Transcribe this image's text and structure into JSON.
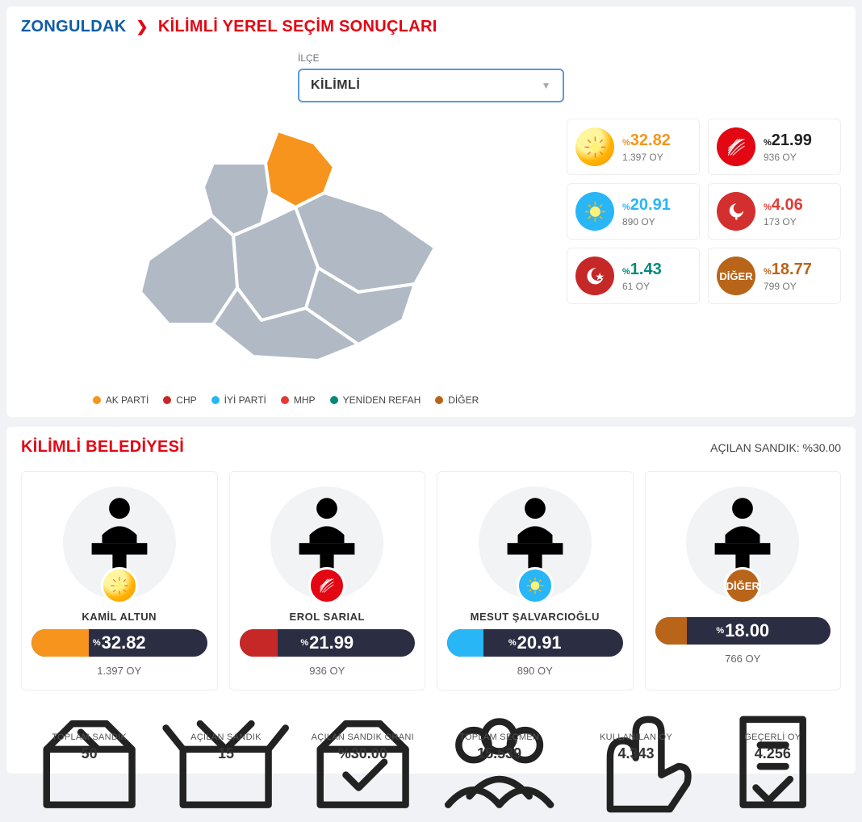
{
  "breadcrumb": {
    "province": "ZONGULDAK",
    "title": "KİLİMLİ YEREL SEÇİM SONUÇLARI"
  },
  "select": {
    "label": "İLÇE",
    "value": "KİLİMLİ"
  },
  "legend": [
    {
      "label": "AK PARTİ",
      "color": "#f7941d"
    },
    {
      "label": "CHP",
      "color": "#c62828"
    },
    {
      "label": "İYİ PARTİ",
      "color": "#29b6f6"
    },
    {
      "label": "MHP",
      "color": "#e53935"
    },
    {
      "label": "YENİDEN REFAH",
      "color": "#00897b"
    },
    {
      "label": "DİĞER",
      "color": "#b8651a"
    }
  ],
  "party_results": [
    {
      "party": "AK PARTİ",
      "logo": "akp",
      "pct_text": "32.82",
      "pct_color": "#f7941d",
      "votes": "1.397 OY"
    },
    {
      "party": "CHP",
      "logo": "chp",
      "pct_text": "21.99",
      "pct_color": "#222",
      "votes": "936 OY"
    },
    {
      "party": "İYİ PARTİ",
      "logo": "iyi",
      "pct_text": "20.91",
      "pct_color": "#29b6f6",
      "votes": "890 OY"
    },
    {
      "party": "MHP",
      "logo": "mhp",
      "pct_text": "4.06",
      "pct_color": "#e53935",
      "votes": "173 OY"
    },
    {
      "party": "YENİDEN REFAH",
      "logo": "yrf",
      "pct_text": "1.43",
      "pct_color": "#00897b",
      "votes": "61 OY"
    },
    {
      "party": "DİĞER",
      "logo": "diger",
      "pct_text": "18.77",
      "pct_color": "#b8651a",
      "votes": "799 OY"
    }
  ],
  "municipality": {
    "title": "KİLİMLİ BELEDİYESİ",
    "opened_label": "AÇILAN SANDIK: %30.00"
  },
  "candidates": [
    {
      "name": "KAMİL ALTUN",
      "logo": "akp",
      "pct_text": "32.82",
      "pct_num": 32.82,
      "bar_color": "#f7941d",
      "votes": "1.397 OY"
    },
    {
      "name": "EROL SARIAL",
      "logo": "chp",
      "pct_text": "21.99",
      "pct_num": 21.99,
      "bar_color": "#c62828",
      "votes": "936 OY"
    },
    {
      "name": "MESUT ŞALVARCIOĞLU",
      "logo": "iyi",
      "pct_text": "20.91",
      "pct_num": 20.91,
      "bar_color": "#29b6f6",
      "votes": "890 OY"
    },
    {
      "name": "",
      "logo": "diger",
      "pct_text": "18.00",
      "pct_num": 18.0,
      "bar_color": "#b8651a",
      "votes": "766 OY"
    }
  ],
  "stats": [
    {
      "label": "TOPLAM SANDIK",
      "value": "50",
      "icon": "box"
    },
    {
      "label": "AÇILAN SANDIK",
      "value": "15",
      "icon": "box-open"
    },
    {
      "label": "AÇILAN SANDIK ORANI",
      "value": "%30.00",
      "icon": "box-check"
    },
    {
      "label": "TOPLAM SEÇMEN",
      "value": "15.539",
      "icon": "people"
    },
    {
      "label": "KULLANILAN OY",
      "value": "4.343",
      "icon": "hand"
    },
    {
      "label": "GEÇERLİ OY",
      "value": "4.256",
      "icon": "ballot"
    }
  ]
}
